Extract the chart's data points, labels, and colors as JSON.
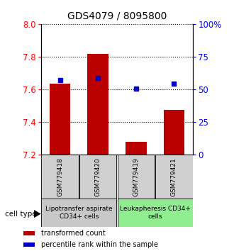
{
  "title": "GDS4079 / 8095800",
  "samples": [
    "GSM779418",
    "GSM779420",
    "GSM779419",
    "GSM779421"
  ],
  "bar_values": [
    7.634,
    7.818,
    7.278,
    7.472
  ],
  "blue_values": [
    7.653,
    7.67,
    7.602,
    7.632
  ],
  "ymin": 7.2,
  "ymax": 8.0,
  "yticks": [
    7.2,
    7.4,
    7.6,
    7.8,
    8.0
  ],
  "right_yticks": [
    0,
    25,
    50,
    75,
    100
  ],
  "right_ytick_labels": [
    "0",
    "25",
    "50",
    "75",
    "100%"
  ],
  "bar_color": "#bb0000",
  "blue_color": "#0000cc",
  "bar_bottom": 7.2,
  "groups": [
    {
      "label": "Lipotransfer aspirate\nCD34+ cells",
      "indices": [
        0,
        1
      ],
      "bg": "#c8c8c8"
    },
    {
      "label": "Leukapheresis CD34+\ncells",
      "indices": [
        2,
        3
      ],
      "bg": "#90ee90"
    }
  ],
  "legend_items": [
    {
      "color": "#bb0000",
      "label": "transformed count"
    },
    {
      "color": "#0000cc",
      "label": "percentile rank within the sample"
    }
  ],
  "cell_type_label": "cell type",
  "bar_width": 0.55
}
